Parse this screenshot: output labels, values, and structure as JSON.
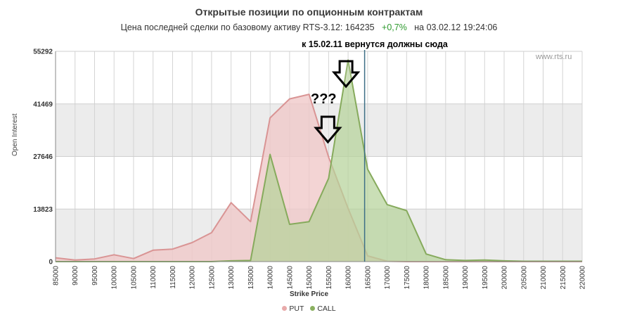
{
  "header": {
    "title": "Открытые позиции по опционным контрактам",
    "subtitle_prefix": "Цена последней сделки по базовому активу RTS-3.12:",
    "last_price": "164235",
    "change": "+0,7%",
    "subtitle_suffix": "на 03.02.12 19:24:06"
  },
  "annotations": {
    "top_note": "к 15.02.11 вернутся должны сюда",
    "question": "???",
    "watermark": "www.rts.ru"
  },
  "chart_data": {
    "type": "area",
    "xlabel": "Strike Price",
    "ylabel": "Open Interest",
    "x": [
      85000,
      90000,
      95000,
      100000,
      105000,
      110000,
      115000,
      120000,
      125000,
      130000,
      135000,
      140000,
      145000,
      150000,
      155000,
      160000,
      165000,
      170000,
      175000,
      180000,
      185000,
      190000,
      195000,
      200000,
      205000,
      210000,
      215000,
      220000
    ],
    "x_tick_labels": [
      "85000",
      "90000",
      "95000",
      "100000",
      "105000",
      "110000",
      "115000",
      "120000",
      "125000",
      "130000",
      "135000",
      "140000",
      "145000",
      "150000",
      "155000",
      "160000",
      "165000",
      "170000",
      "175000",
      "180000",
      "185000",
      "190000",
      "195000",
      "200000",
      "205000",
      "210000",
      "215000",
      "220000"
    ],
    "xlim": [
      85000,
      220000
    ],
    "ylim": [
      0,
      55292
    ],
    "y_ticks": [
      0,
      13823,
      27646,
      41469,
      55292
    ],
    "y_tick_labels": [
      "0",
      "13823",
      "27646",
      "41469",
      "55292"
    ],
    "current_price": 164235,
    "series": [
      {
        "name": "PUT",
        "color": "#d99494",
        "fill": "#f0c8c8",
        "values": [
          1000,
          400,
          700,
          1800,
          800,
          3000,
          3300,
          5000,
          7600,
          15500,
          10500,
          37800,
          42800,
          44000,
          27500,
          14000,
          1500,
          100,
          0,
          0,
          0,
          0,
          0,
          0,
          0,
          0,
          0,
          0
        ]
      },
      {
        "name": "CALL",
        "color": "#86aa5c",
        "fill": "#b5d39a",
        "values": [
          0,
          0,
          0,
          0,
          0,
          0,
          0,
          0,
          0,
          200,
          300,
          28200,
          9800,
          10500,
          21900,
          53000,
          24300,
          15000,
          13400,
          2000,
          500,
          300,
          400,
          200,
          100,
          100,
          100,
          100
        ]
      }
    ]
  }
}
